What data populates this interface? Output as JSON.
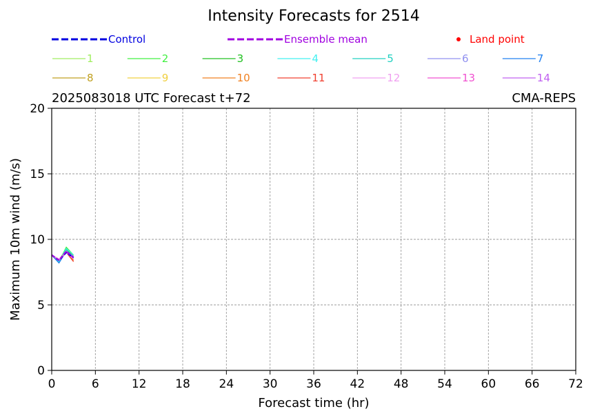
{
  "chart_data": {
    "type": "line",
    "title": "Intensity Forecasts for 2514",
    "subtitle_left": "2025083018 UTC Forecast t+72",
    "subtitle_right": "CMA-REPS",
    "xlabel": "Forecast time (hr)",
    "ylabel": "Maximum 10m wind (m/s)",
    "xlim": [
      0,
      72
    ],
    "ylim": [
      0,
      20
    ],
    "xticks": [
      0,
      6,
      12,
      18,
      24,
      30,
      36,
      42,
      48,
      54,
      60,
      66,
      72
    ],
    "yticks": [
      0,
      5,
      10,
      15,
      20
    ],
    "grid": true,
    "legend_placement": "top",
    "legend": [
      {
        "label": "Control",
        "color": "#0000e0",
        "style": "dashed"
      },
      {
        "label": "Ensemble mean",
        "color": "#a000e0",
        "style": "dashed"
      },
      {
        "label": "Land point",
        "color": "#ff0000",
        "style": "marker"
      }
    ],
    "series": [
      {
        "name": "1",
        "color": "#a0ee60",
        "x": [
          0,
          1,
          2,
          3
        ],
        "y": [
          8.8,
          8.4,
          9.3,
          8.7
        ]
      },
      {
        "name": "2",
        "color": "#40f040",
        "x": [
          0,
          1,
          2,
          3
        ],
        "y": [
          8.8,
          8.3,
          9.4,
          8.8
        ]
      },
      {
        "name": "3",
        "color": "#20c020",
        "x": [
          0,
          1,
          2,
          3
        ],
        "y": [
          8.8,
          8.3,
          9.3,
          8.7
        ]
      },
      {
        "name": "4",
        "color": "#40f0f0",
        "x": [
          0,
          1,
          2,
          3
        ],
        "y": [
          8.8,
          8.3,
          9.3,
          8.8
        ]
      },
      {
        "name": "5",
        "color": "#20d0c0",
        "x": [
          0,
          1,
          2,
          3
        ],
        "y": [
          8.8,
          8.2,
          9.2,
          8.6
        ]
      },
      {
        "name": "6",
        "color": "#9090f0",
        "x": [
          0,
          1,
          2,
          3
        ],
        "y": [
          8.8,
          8.4,
          9.1,
          8.7
        ]
      },
      {
        "name": "7",
        "color": "#2080f0",
        "x": [
          0,
          1,
          2,
          3
        ],
        "y": [
          8.8,
          8.2,
          9.1,
          8.6
        ]
      },
      {
        "name": "8",
        "color": "#c0a020",
        "x": [
          0,
          1,
          2,
          3
        ],
        "y": [
          8.8,
          8.4,
          9.0,
          8.6
        ]
      },
      {
        "name": "9",
        "color": "#f0d040",
        "x": [
          0,
          1,
          2,
          3
        ],
        "y": [
          8.8,
          8.5,
          9.0,
          8.5
        ]
      },
      {
        "name": "10",
        "color": "#f08020",
        "x": [
          0,
          1,
          2,
          3
        ],
        "y": [
          8.8,
          8.4,
          9.0,
          8.4
        ]
      },
      {
        "name": "11",
        "color": "#f04030",
        "x": [
          0,
          1,
          2,
          3
        ],
        "y": [
          8.8,
          8.4,
          9.0,
          8.3
        ]
      },
      {
        "name": "12",
        "color": "#f0a0f0",
        "x": [
          0,
          1,
          2,
          3
        ],
        "y": [
          8.8,
          8.5,
          9.0,
          8.5
        ]
      },
      {
        "name": "13",
        "color": "#f050d0",
        "x": [
          0,
          1,
          2,
          3
        ],
        "y": [
          8.8,
          8.4,
          9.1,
          8.6
        ]
      },
      {
        "name": "14",
        "color": "#c060f0",
        "x": [
          0,
          1,
          2,
          3
        ],
        "y": [
          8.8,
          8.4,
          9.0,
          8.6
        ]
      },
      {
        "name": "Control",
        "color": "#0000e0",
        "dashed": true,
        "x": [
          0,
          1,
          2,
          3
        ],
        "y": [
          8.8,
          8.4,
          9.0,
          8.6
        ]
      },
      {
        "name": "Ensemble mean",
        "color": "#a000e0",
        "dashed": true,
        "x": [
          0,
          1,
          2,
          3
        ],
        "y": [
          8.8,
          8.4,
          9.1,
          8.6
        ]
      }
    ]
  }
}
